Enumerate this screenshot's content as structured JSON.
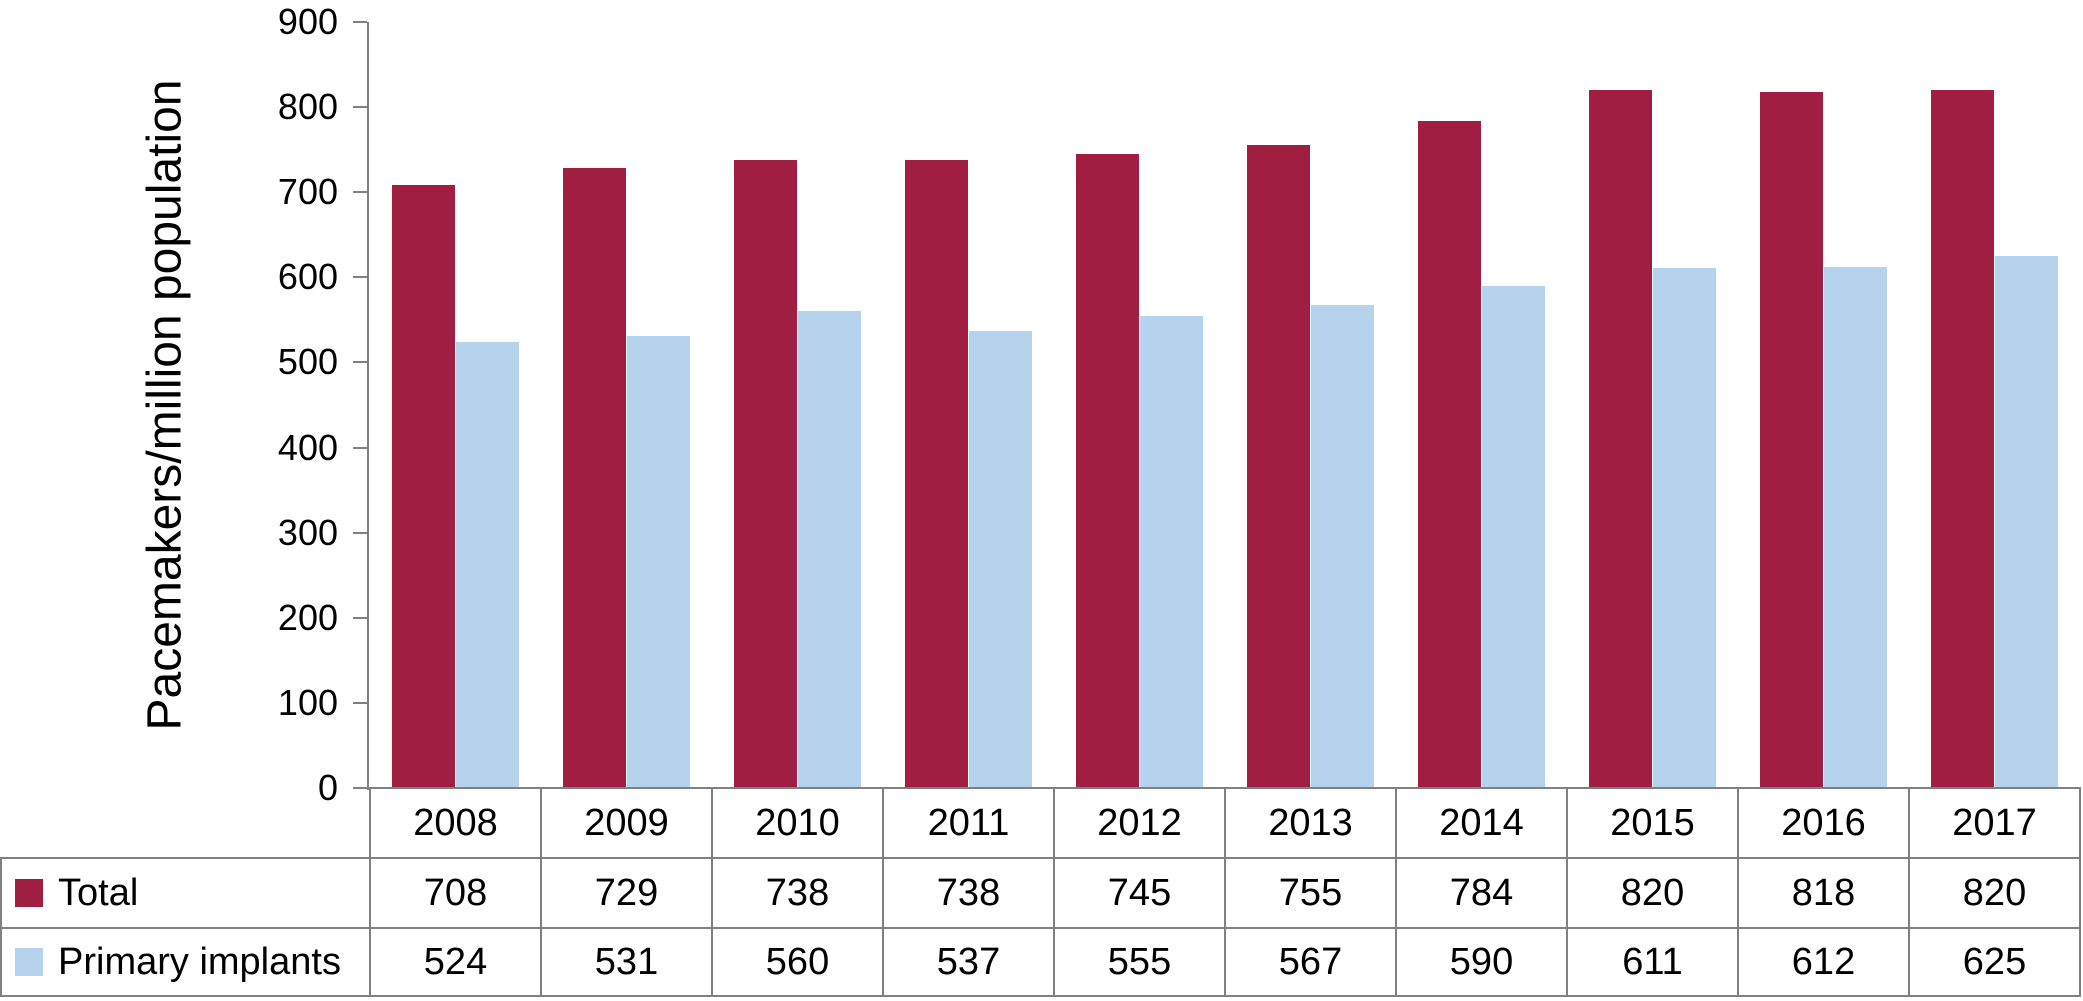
{
  "chart_data": {
    "type": "bar",
    "title": "",
    "xlabel": "",
    "ylabel": "Pacemakers/million population",
    "categories": [
      "2008",
      "2009",
      "2010",
      "2011",
      "2012",
      "2013",
      "2014",
      "2015",
      "2016",
      "2017"
    ],
    "series": [
      {
        "name": "Total",
        "color": "#A01E41",
        "values": [
          708,
          729,
          738,
          738,
          745,
          755,
          784,
          820,
          818,
          820
        ]
      },
      {
        "name": "Primary implants",
        "color": "#B6D3EE",
        "values": [
          524,
          531,
          560,
          537,
          555,
          567,
          590,
          611,
          612,
          625
        ]
      }
    ],
    "ylim": [
      0,
      900
    ],
    "yticks": [
      0,
      100,
      200,
      300,
      400,
      500,
      600,
      700,
      800,
      900
    ],
    "grid": false,
    "legend_position": "data-table-left",
    "axis_color": "#808080",
    "data_table_shown": true
  }
}
